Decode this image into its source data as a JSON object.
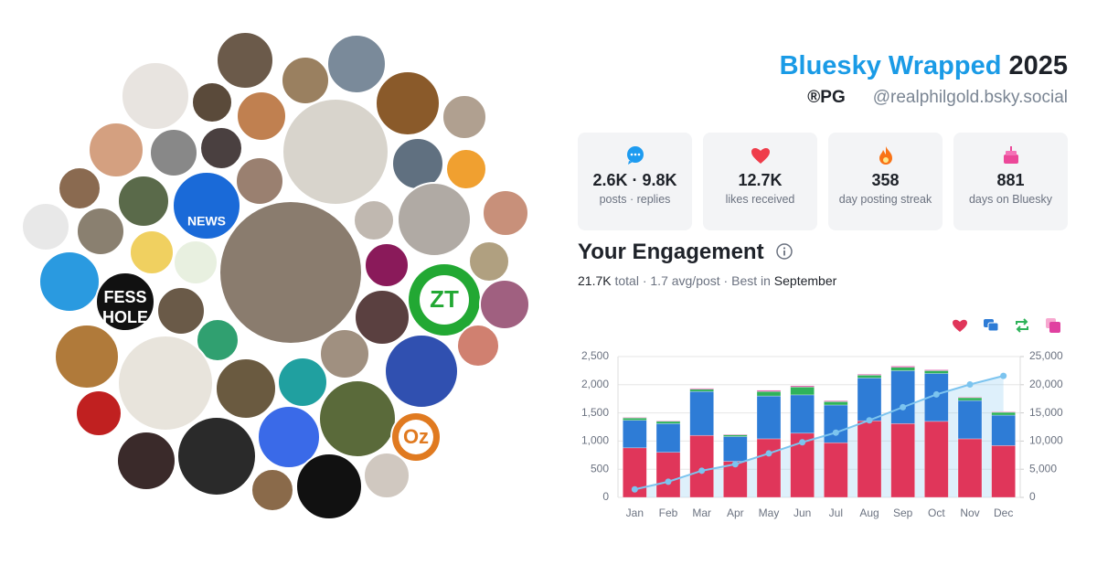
{
  "header": {
    "title": "Bluesky Wrapped",
    "year": "2025",
    "name": "®PG",
    "handle": "@realphilgold.bsky.social"
  },
  "collage": {
    "labels": [
      "NEWS",
      "FESS",
      "HOLE",
      "ZT",
      "Oz"
    ]
  },
  "stats": [
    {
      "value": "2.6K · 9.8K",
      "label": "posts · replies"
    },
    {
      "value": "12.7K",
      "label": "likes received"
    },
    {
      "value": "358",
      "label": "day posting streak"
    },
    {
      "value": "881",
      "label": "days on Bluesky"
    }
  ],
  "engagement": {
    "title": "Your Engagement",
    "total": "21.7K",
    "summary": "total · 1.7 avg/post · Best in",
    "best": "September"
  },
  "chart_data": {
    "type": "bar",
    "stacked": true,
    "grid": true,
    "categories": [
      "Jan",
      "Feb",
      "Mar",
      "Apr",
      "May",
      "Jun",
      "Jul",
      "Aug",
      "Sep",
      "Oct",
      "Nov",
      "Dec"
    ],
    "series": [
      {
        "color": "#e0365a",
        "values": [
          880,
          800,
          1100,
          640,
          1040,
          1140,
          970,
          1360,
          1310,
          1350,
          1040,
          920
        ]
      },
      {
        "color": "#2e7cd6",
        "values": [
          490,
          510,
          780,
          440,
          760,
          680,
          670,
          760,
          940,
          850,
          680,
          540
        ]
      },
      {
        "color": "#2fb35a",
        "values": [
          40,
          40,
          40,
          30,
          80,
          140,
          60,
          50,
          60,
          50,
          50,
          50
        ]
      },
      {
        "color": "#e040a0",
        "values": [
          10,
          10,
          15,
          10,
          20,
          20,
          15,
          15,
          20,
          15,
          10,
          10
        ]
      },
      {
        "type": "line",
        "axis": "y2",
        "color": "#7cc4ef",
        "values": [
          1420,
          2780,
          4735,
          5885,
          7805,
          9785,
          11495,
          13680,
          16010,
          18275,
          20045,
          21575
        ]
      }
    ],
    "ylim": [
      0,
      2500
    ],
    "yticks": [
      0,
      500,
      {
        "value": 1000,
        "label": "1,000"
      },
      {
        "value": 1500,
        "label": "1,500"
      },
      {
        "value": 2000,
        "label": "2,000"
      },
      {
        "value": 2500,
        "label": "2,500"
      }
    ],
    "y2lim": [
      0,
      25000
    ],
    "y2ticks": [
      0,
      {
        "value": 5000,
        "label": "5,000"
      },
      {
        "value": 10000,
        "label": "10,000"
      },
      {
        "value": 15000,
        "label": "15,000"
      },
      {
        "value": 20000,
        "label": "20,000"
      },
      {
        "value": 25000,
        "label": "25,000"
      }
    ]
  }
}
